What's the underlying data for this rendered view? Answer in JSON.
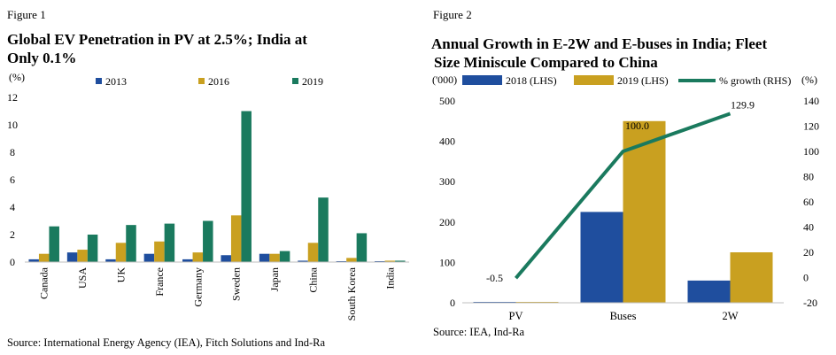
{
  "colors": {
    "y2013": "#1f4e9e",
    "y2016": "#c9a020",
    "y2019": "#1a7a5e",
    "axis": "#000000"
  },
  "figure1": {
    "label": "Figure 1",
    "title_line1": "Global EV Penetration in PV at 2.5%; India at",
    "title_line2": "Only 0.1%",
    "source": "Source: International Energy Agency (IEA), Fitch Solutions and Ind-Ra",
    "chart_data": {
      "type": "bar",
      "title": "Global EV Penetration in PV at 2.5%; India at Only 0.1%",
      "ylabel": "(%)",
      "ylim": [
        0,
        12
      ],
      "yticks": [
        0,
        2,
        4,
        6,
        8,
        10,
        12
      ],
      "categories": [
        "Canada",
        "USA",
        "UK",
        "France",
        "Germany",
        "Sweden",
        "Japan",
        "China",
        "South Korea",
        "India"
      ],
      "series": [
        {
          "name": "2013",
          "values": [
            0.2,
            0.7,
            0.2,
            0.6,
            0.2,
            0.5,
            0.6,
            0.1,
            0.0,
            0.0
          ]
        },
        {
          "name": "2016",
          "values": [
            0.6,
            0.9,
            1.4,
            1.5,
            0.7,
            3.4,
            0.6,
            1.4,
            0.3,
            0.1
          ]
        },
        {
          "name": "2019",
          "values": [
            2.6,
            2.0,
            2.7,
            2.8,
            3.0,
            11.0,
            0.8,
            4.7,
            2.1,
            0.1
          ]
        }
      ]
    }
  },
  "figure2": {
    "label": "Figure 2",
    "title_line1": "Annual Growth in E-2W and E-buses in India; Fleet",
    "title_line2": "Size Miniscule Compared to China",
    "source": "Source: IEA, Ind-Ra",
    "chart_data": {
      "type": "bar",
      "title": "Annual Growth in E-2W and E-buses in India; Fleet Size Miniscule Compared to China",
      "ylabel_left": "('000)",
      "ylabel_right": "(%)",
      "ylim_left": [
        0,
        500
      ],
      "yticks_left": [
        0,
        100,
        200,
        300,
        400,
        500
      ],
      "ylim_right": [
        -20,
        140
      ],
      "yticks_right": [
        -20,
        0,
        20,
        40,
        60,
        80,
        100,
        120,
        140
      ],
      "categories": [
        "PV",
        "Buses",
        "2W"
      ],
      "series": [
        {
          "name": "2018 (LHS)",
          "axis": "left",
          "type": "bar",
          "values": [
            2,
            225,
            55
          ]
        },
        {
          "name": "2019 (LHS)",
          "axis": "left",
          "type": "bar",
          "values": [
            2,
            450,
            125
          ]
        },
        {
          "name": "% growth (RHS)",
          "axis": "right",
          "type": "line",
          "values": [
            -0.5,
            100.0,
            129.9
          ],
          "labels": [
            "-0.5",
            "100.0",
            "129.9"
          ]
        }
      ]
    }
  }
}
